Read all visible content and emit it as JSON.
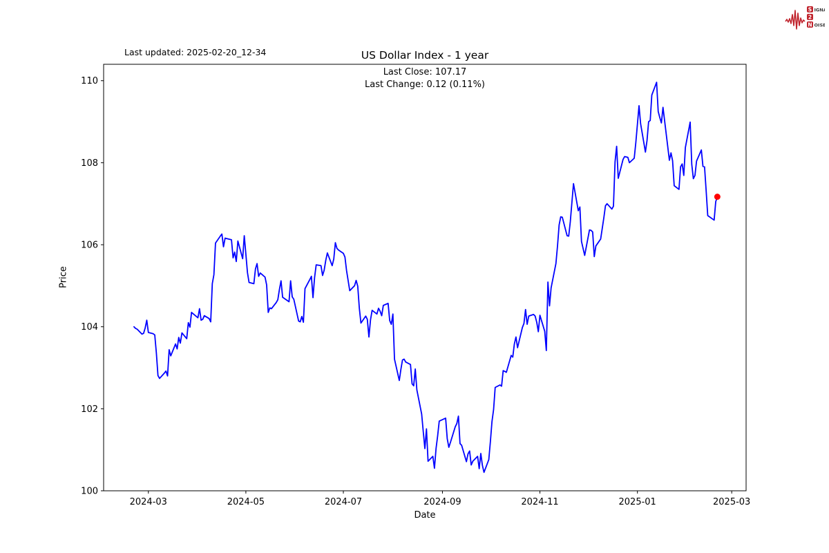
{
  "header": {
    "last_updated": "Last updated: 2025-02-20_12-34",
    "title": "US Dollar Index - 1 year",
    "subtitle_line1": "Last Close: 107.17",
    "subtitle_line2": "Last Change: 0.12 (0.11%)"
  },
  "logo": {
    "word1_initial": "S",
    "word1_rest": "IGNAL",
    "word2": "2",
    "word3_initial": "N",
    "word3_rest": "OISE",
    "accent_color": "#c0232c"
  },
  "chart_data": {
    "type": "line",
    "title": "US Dollar Index - 1 year",
    "xlabel": "Date",
    "ylabel": "Price",
    "line_color": "#0000ff",
    "marker_color": "#ff0000",
    "grid": false,
    "ylim": [
      100,
      110.4
    ],
    "xlim": [
      "2024-02-02",
      "2025-03-10"
    ],
    "y_ticks": [
      100,
      102,
      104,
      106,
      108,
      110
    ],
    "x_ticks": [
      {
        "date": "2024-03-01",
        "label": "2024-03"
      },
      {
        "date": "2024-05-01",
        "label": "2024-05"
      },
      {
        "date": "2024-07-01",
        "label": "2024-07"
      },
      {
        "date": "2024-09-01",
        "label": "2024-09"
      },
      {
        "date": "2024-11-01",
        "label": "2024-11"
      },
      {
        "date": "2025-01-01",
        "label": "2025-01"
      },
      {
        "date": "2025-03-01",
        "label": "2025-03"
      }
    ],
    "last_close": 107.17,
    "last_change": 0.12,
    "last_change_pct": 0.11,
    "points": [
      [
        "2024-02-21",
        104.0
      ],
      [
        "2024-02-22",
        103.96
      ],
      [
        "2024-02-23",
        103.94
      ],
      [
        "2024-02-26",
        103.82
      ],
      [
        "2024-02-27",
        103.84
      ],
      [
        "2024-02-28",
        103.97
      ],
      [
        "2024-02-29",
        104.16
      ],
      [
        "2024-03-01",
        103.86
      ],
      [
        "2024-03-04",
        103.83
      ],
      [
        "2024-03-05",
        103.8
      ],
      [
        "2024-03-06",
        103.36
      ],
      [
        "2024-03-07",
        102.81
      ],
      [
        "2024-03-08",
        102.74
      ],
      [
        "2024-03-11",
        102.87
      ],
      [
        "2024-03-12",
        102.92
      ],
      [
        "2024-03-13",
        102.8
      ],
      [
        "2024-03-14",
        103.44
      ],
      [
        "2024-03-15",
        103.29
      ],
      [
        "2024-03-18",
        103.58
      ],
      [
        "2024-03-19",
        103.46
      ],
      [
        "2024-03-20",
        103.74
      ],
      [
        "2024-03-21",
        103.6
      ],
      [
        "2024-03-22",
        103.85
      ],
      [
        "2024-03-25",
        103.71
      ],
      [
        "2024-03-26",
        104.1
      ],
      [
        "2024-03-27",
        103.99
      ],
      [
        "2024-03-28",
        104.35
      ],
      [
        "2024-04-01",
        104.22
      ],
      [
        "2024-04-02",
        104.44
      ],
      [
        "2024-04-03",
        104.16
      ],
      [
        "2024-04-04",
        104.18
      ],
      [
        "2024-04-05",
        104.27
      ],
      [
        "2024-04-08",
        104.2
      ],
      [
        "2024-04-09",
        104.12
      ],
      [
        "2024-04-10",
        105.05
      ],
      [
        "2024-04-11",
        105.27
      ],
      [
        "2024-04-12",
        106.04
      ],
      [
        "2024-04-15",
        106.21
      ],
      [
        "2024-04-16",
        106.26
      ],
      [
        "2024-04-17",
        105.95
      ],
      [
        "2024-04-18",
        106.16
      ],
      [
        "2024-04-19",
        106.15
      ],
      [
        "2024-04-22",
        106.12
      ],
      [
        "2024-04-23",
        105.68
      ],
      [
        "2024-04-24",
        105.82
      ],
      [
        "2024-04-25",
        105.59
      ],
      [
        "2024-04-26",
        106.09
      ],
      [
        "2024-04-29",
        105.66
      ],
      [
        "2024-04-30",
        106.22
      ],
      [
        "2024-05-01",
        105.77
      ],
      [
        "2024-05-02",
        105.32
      ],
      [
        "2024-05-03",
        105.08
      ],
      [
        "2024-05-06",
        105.05
      ],
      [
        "2024-05-07",
        105.41
      ],
      [
        "2024-05-08",
        105.54
      ],
      [
        "2024-05-09",
        105.23
      ],
      [
        "2024-05-10",
        105.31
      ],
      [
        "2024-05-13",
        105.21
      ],
      [
        "2024-05-14",
        105.02
      ],
      [
        "2024-05-15",
        104.35
      ],
      [
        "2024-05-16",
        104.46
      ],
      [
        "2024-05-17",
        104.44
      ],
      [
        "2024-05-20",
        104.59
      ],
      [
        "2024-05-21",
        104.66
      ],
      [
        "2024-05-22",
        104.91
      ],
      [
        "2024-05-23",
        105.12
      ],
      [
        "2024-05-24",
        104.72
      ],
      [
        "2024-05-28",
        104.61
      ],
      [
        "2024-05-29",
        105.12
      ],
      [
        "2024-05-30",
        104.73
      ],
      [
        "2024-05-31",
        104.67
      ],
      [
        "2024-06-03",
        104.14
      ],
      [
        "2024-06-04",
        104.12
      ],
      [
        "2024-06-05",
        104.25
      ],
      [
        "2024-06-06",
        104.11
      ],
      [
        "2024-06-07",
        104.93
      ],
      [
        "2024-06-10",
        105.15
      ],
      [
        "2024-06-11",
        105.23
      ],
      [
        "2024-06-12",
        104.71
      ],
      [
        "2024-06-13",
        105.2
      ],
      [
        "2024-06-14",
        105.51
      ],
      [
        "2024-06-17",
        105.49
      ],
      [
        "2024-06-18",
        105.25
      ],
      [
        "2024-06-19",
        105.38
      ],
      [
        "2024-06-20",
        105.62
      ],
      [
        "2024-06-21",
        105.8
      ],
      [
        "2024-06-24",
        105.49
      ],
      [
        "2024-06-25",
        105.65
      ],
      [
        "2024-06-26",
        106.05
      ],
      [
        "2024-06-27",
        105.91
      ],
      [
        "2024-06-28",
        105.87
      ],
      [
        "2024-07-01",
        105.79
      ],
      [
        "2024-07-02",
        105.7
      ],
      [
        "2024-07-03",
        105.37
      ],
      [
        "2024-07-05",
        104.88
      ],
      [
        "2024-07-08",
        105.0
      ],
      [
        "2024-07-09",
        105.13
      ],
      [
        "2024-07-10",
        104.99
      ],
      [
        "2024-07-11",
        104.45
      ],
      [
        "2024-07-12",
        104.09
      ],
      [
        "2024-07-15",
        104.26
      ],
      [
        "2024-07-16",
        104.18
      ],
      [
        "2024-07-17",
        103.75
      ],
      [
        "2024-07-18",
        104.17
      ],
      [
        "2024-07-19",
        104.4
      ],
      [
        "2024-07-22",
        104.31
      ],
      [
        "2024-07-23",
        104.45
      ],
      [
        "2024-07-24",
        104.38
      ],
      [
        "2024-07-25",
        104.27
      ],
      [
        "2024-07-26",
        104.52
      ],
      [
        "2024-07-29",
        104.57
      ],
      [
        "2024-07-30",
        104.15
      ],
      [
        "2024-07-31",
        104.06
      ],
      [
        "2024-08-01",
        104.31
      ],
      [
        "2024-08-02",
        103.21
      ],
      [
        "2024-08-05",
        102.69
      ],
      [
        "2024-08-06",
        102.96
      ],
      [
        "2024-08-07",
        103.19
      ],
      [
        "2024-08-08",
        103.21
      ],
      [
        "2024-08-09",
        103.14
      ],
      [
        "2024-08-12",
        103.08
      ],
      [
        "2024-08-13",
        102.61
      ],
      [
        "2024-08-14",
        102.56
      ],
      [
        "2024-08-15",
        102.97
      ],
      [
        "2024-08-16",
        102.46
      ],
      [
        "2024-08-19",
        101.87
      ],
      [
        "2024-08-20",
        101.44
      ],
      [
        "2024-08-21",
        101.03
      ],
      [
        "2024-08-22",
        101.51
      ],
      [
        "2024-08-23",
        100.72
      ],
      [
        "2024-08-26",
        100.84
      ],
      [
        "2024-08-27",
        100.55
      ],
      [
        "2024-08-28",
        101.03
      ],
      [
        "2024-08-29",
        101.34
      ],
      [
        "2024-08-30",
        101.7
      ],
      [
        "2024-09-03",
        101.77
      ],
      [
        "2024-09-04",
        101.27
      ],
      [
        "2024-09-05",
        101.06
      ],
      [
        "2024-09-06",
        101.18
      ],
      [
        "2024-09-09",
        101.56
      ],
      [
        "2024-09-10",
        101.64
      ],
      [
        "2024-09-11",
        101.82
      ],
      [
        "2024-09-12",
        101.15
      ],
      [
        "2024-09-13",
        101.11
      ],
      [
        "2024-09-16",
        100.71
      ],
      [
        "2024-09-17",
        100.9
      ],
      [
        "2024-09-18",
        100.97
      ],
      [
        "2024-09-19",
        100.63
      ],
      [
        "2024-09-20",
        100.72
      ],
      [
        "2024-09-23",
        100.84
      ],
      [
        "2024-09-24",
        100.54
      ],
      [
        "2024-09-25",
        100.91
      ],
      [
        "2024-09-26",
        100.62
      ],
      [
        "2024-09-27",
        100.45
      ],
      [
        "2024-09-30",
        100.76
      ],
      [
        "2024-10-01",
        101.2
      ],
      [
        "2024-10-02",
        101.69
      ],
      [
        "2024-10-03",
        101.98
      ],
      [
        "2024-10-04",
        102.52
      ],
      [
        "2024-10-07",
        102.58
      ],
      [
        "2024-10-08",
        102.55
      ],
      [
        "2024-10-09",
        102.93
      ],
      [
        "2024-10-10",
        102.91
      ],
      [
        "2024-10-11",
        102.89
      ],
      [
        "2024-10-14",
        103.3
      ],
      [
        "2024-10-15",
        103.26
      ],
      [
        "2024-10-16",
        103.58
      ],
      [
        "2024-10-17",
        103.75
      ],
      [
        "2024-10-18",
        103.49
      ],
      [
        "2024-10-21",
        103.98
      ],
      [
        "2024-10-22",
        104.08
      ],
      [
        "2024-10-23",
        104.42
      ],
      [
        "2024-10-24",
        104.06
      ],
      [
        "2024-10-25",
        104.26
      ],
      [
        "2024-10-28",
        104.3
      ],
      [
        "2024-10-29",
        104.26
      ],
      [
        "2024-10-30",
        104.11
      ],
      [
        "2024-10-31",
        103.88
      ],
      [
        "2024-11-01",
        104.28
      ],
      [
        "2024-11-04",
        103.89
      ],
      [
        "2024-11-05",
        103.42
      ],
      [
        "2024-11-06",
        105.09
      ],
      [
        "2024-11-07",
        104.51
      ],
      [
        "2024-11-08",
        104.95
      ],
      [
        "2024-11-11",
        105.54
      ],
      [
        "2024-11-12",
        105.97
      ],
      [
        "2024-11-13",
        106.48
      ],
      [
        "2024-11-14",
        106.68
      ],
      [
        "2024-11-15",
        106.67
      ],
      [
        "2024-11-18",
        106.22
      ],
      [
        "2024-11-19",
        106.21
      ],
      [
        "2024-11-20",
        106.56
      ],
      [
        "2024-11-21",
        107.03
      ],
      [
        "2024-11-22",
        107.49
      ],
      [
        "2024-11-25",
        106.83
      ],
      [
        "2024-11-26",
        106.92
      ],
      [
        "2024-11-27",
        106.08
      ],
      [
        "2024-11-29",
        105.74
      ],
      [
        "2024-12-02",
        106.36
      ],
      [
        "2024-12-03",
        106.35
      ],
      [
        "2024-12-04",
        106.31
      ],
      [
        "2024-12-05",
        105.71
      ],
      [
        "2024-12-06",
        105.97
      ],
      [
        "2024-12-09",
        106.14
      ],
      [
        "2024-12-10",
        106.4
      ],
      [
        "2024-12-11",
        106.66
      ],
      [
        "2024-12-12",
        106.95
      ],
      [
        "2024-12-13",
        107.0
      ],
      [
        "2024-12-16",
        106.87
      ],
      [
        "2024-12-17",
        106.94
      ],
      [
        "2024-12-18",
        108.02
      ],
      [
        "2024-12-19",
        108.4
      ],
      [
        "2024-12-20",
        107.62
      ],
      [
        "2024-12-23",
        108.08
      ],
      [
        "2024-12-24",
        108.15
      ],
      [
        "2024-12-26",
        108.13
      ],
      [
        "2024-12-27",
        108.0
      ],
      [
        "2024-12-30",
        108.11
      ],
      [
        "2024-12-31",
        108.49
      ],
      [
        "2025-01-02",
        109.39
      ],
      [
        "2025-01-03",
        108.95
      ],
      [
        "2025-01-06",
        108.26
      ],
      [
        "2025-01-07",
        108.54
      ],
      [
        "2025-01-08",
        109.0
      ],
      [
        "2025-01-09",
        109.03
      ],
      [
        "2025-01-10",
        109.65
      ],
      [
        "2025-01-13",
        109.96
      ],
      [
        "2025-01-14",
        109.25
      ],
      [
        "2025-01-15",
        109.1
      ],
      [
        "2025-01-16",
        108.97
      ],
      [
        "2025-01-17",
        109.35
      ],
      [
        "2025-01-21",
        108.06
      ],
      [
        "2025-01-22",
        108.24
      ],
      [
        "2025-01-23",
        108.05
      ],
      [
        "2025-01-24",
        107.44
      ],
      [
        "2025-01-27",
        107.35
      ],
      [
        "2025-01-28",
        107.9
      ],
      [
        "2025-01-29",
        107.97
      ],
      [
        "2025-01-30",
        107.69
      ],
      [
        "2025-01-31",
        108.37
      ],
      [
        "2025-02-03",
        108.99
      ],
      [
        "2025-02-04",
        107.96
      ],
      [
        "2025-02-05",
        107.61
      ],
      [
        "2025-02-06",
        107.69
      ],
      [
        "2025-02-07",
        108.04
      ],
      [
        "2025-02-10",
        108.31
      ],
      [
        "2025-02-11",
        107.91
      ],
      [
        "2025-02-12",
        107.9
      ],
      [
        "2025-02-13",
        107.32
      ],
      [
        "2025-02-14",
        106.71
      ],
      [
        "2025-02-18",
        106.6
      ],
      [
        "2025-02-19",
        107.05
      ],
      [
        "2025-02-20",
        107.17
      ]
    ]
  }
}
